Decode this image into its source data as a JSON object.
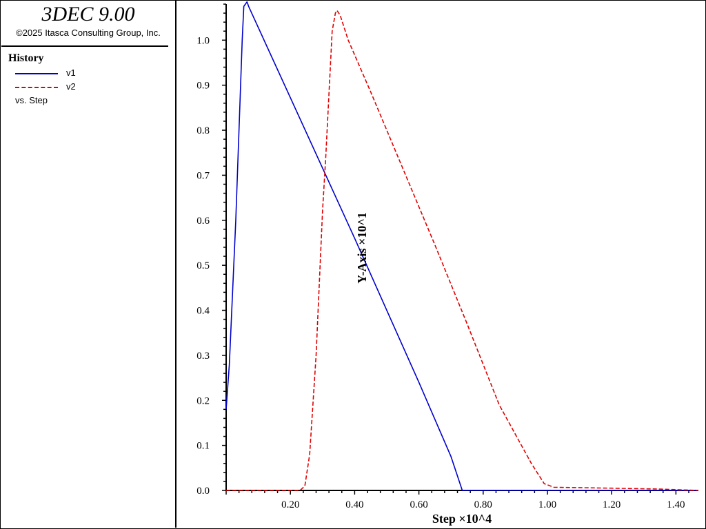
{
  "header": {
    "title": "3DEC 9.00",
    "copyright": "©2025 Itasca Consulting Group, Inc."
  },
  "legend": {
    "heading": "History",
    "items": [
      {
        "label": "v1",
        "color": "#0000cc",
        "style": "solid"
      },
      {
        "label": "v2",
        "color": "#e00000",
        "style": "dashed"
      }
    ],
    "vs_label": "vs. Step"
  },
  "chart_data": {
    "type": "line",
    "xlabel": "Step ×10^4",
    "ylabel": "Y-Axis ×10^1",
    "xlim": [
      0.0,
      1.47
    ],
    "ylim": [
      0.0,
      1.08
    ],
    "x_ticks": [
      "0.20",
      "0.40",
      "0.60",
      "0.80",
      "1.00",
      "1.20",
      "1.40"
    ],
    "y_ticks": [
      "0.0",
      "0.1",
      "0.2",
      "0.3",
      "0.4",
      "0.5",
      "0.6",
      "0.7",
      "0.8",
      "0.9",
      "1.0"
    ],
    "grid": false,
    "series": [
      {
        "name": "v1",
        "color": "#0000cc",
        "style": "solid",
        "points": [
          [
            0.0,
            0.18
          ],
          [
            0.01,
            0.28
          ],
          [
            0.03,
            0.6
          ],
          [
            0.05,
            1.0
          ],
          [
            0.055,
            1.075
          ],
          [
            0.065,
            1.085
          ],
          [
            0.07,
            1.075
          ],
          [
            0.4,
            0.56
          ],
          [
            0.6,
            0.24
          ],
          [
            0.7,
            0.075
          ],
          [
            0.735,
            0.0
          ],
          [
            1.47,
            0.0
          ]
        ]
      },
      {
        "name": "v2",
        "color": "#e00000",
        "style": "dashed",
        "points": [
          [
            0.0,
            0.0
          ],
          [
            0.23,
            0.0
          ],
          [
            0.245,
            0.01
          ],
          [
            0.26,
            0.08
          ],
          [
            0.28,
            0.3
          ],
          [
            0.3,
            0.62
          ],
          [
            0.31,
            0.74
          ],
          [
            0.32,
            0.88
          ],
          [
            0.33,
            1.02
          ],
          [
            0.34,
            1.06
          ],
          [
            0.345,
            1.066
          ],
          [
            0.355,
            1.055
          ],
          [
            0.38,
            1.0
          ],
          [
            0.45,
            0.885
          ],
          [
            0.55,
            0.715
          ],
          [
            0.65,
            0.545
          ],
          [
            0.75,
            0.37
          ],
          [
            0.85,
            0.19
          ],
          [
            0.95,
            0.06
          ],
          [
            0.99,
            0.015
          ],
          [
            1.02,
            0.007
          ],
          [
            1.2,
            0.005
          ],
          [
            1.35,
            0.003
          ],
          [
            1.47,
            0.0
          ]
        ]
      }
    ]
  }
}
